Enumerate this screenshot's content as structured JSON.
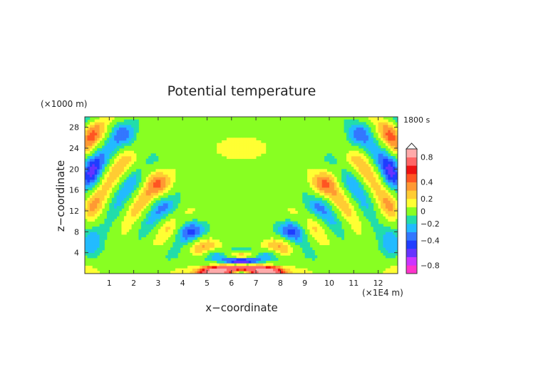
{
  "chart_data": {
    "type": "heatmap",
    "title": "Potential temperature",
    "time_label": "1800 s",
    "xlabel": "x−coordinate",
    "ylabel": "z−coordinate",
    "x_unit": "(×1E4 m)",
    "y_unit": "(×1000 m)",
    "xlim": [
      0,
      12.8
    ],
    "ylim": [
      0,
      30
    ],
    "x_ticks": [
      "1",
      "2",
      "3",
      "4",
      "5",
      "6",
      "7",
      "8",
      "9",
      "10",
      "11",
      "12"
    ],
    "y_ticks": [
      "4",
      "8",
      "12",
      "16",
      "20",
      "24",
      "28"
    ],
    "colorbar": {
      "bins": [
        {
          "color": "#ff33cc"
        },
        {
          "color": "#cc33ff"
        },
        {
          "color": "#6633ff"
        },
        {
          "color": "#1f3dff"
        },
        {
          "color": "#3377ff"
        },
        {
          "color": "#22bbff"
        },
        {
          "color": "#22ddaa"
        },
        {
          "color": "#88ff22"
        },
        {
          "color": "#ffff33"
        },
        {
          "color": "#ffcc33"
        },
        {
          "color": "#ff9933"
        },
        {
          "color": "#ff5522"
        },
        {
          "color": "#ee1111"
        },
        {
          "color": "#ff6666"
        },
        {
          "color": "#ffaaaa"
        }
      ],
      "tick_labels": [
        "0.8",
        "0.4",
        "0.2",
        "0",
        "−0.2",
        "−0.4",
        "−0.8"
      ],
      "extend": "max"
    },
    "background_value": 0,
    "description_bins": "15 colour bins from about -1 (magenta) to 1 (pink)"
  }
}
